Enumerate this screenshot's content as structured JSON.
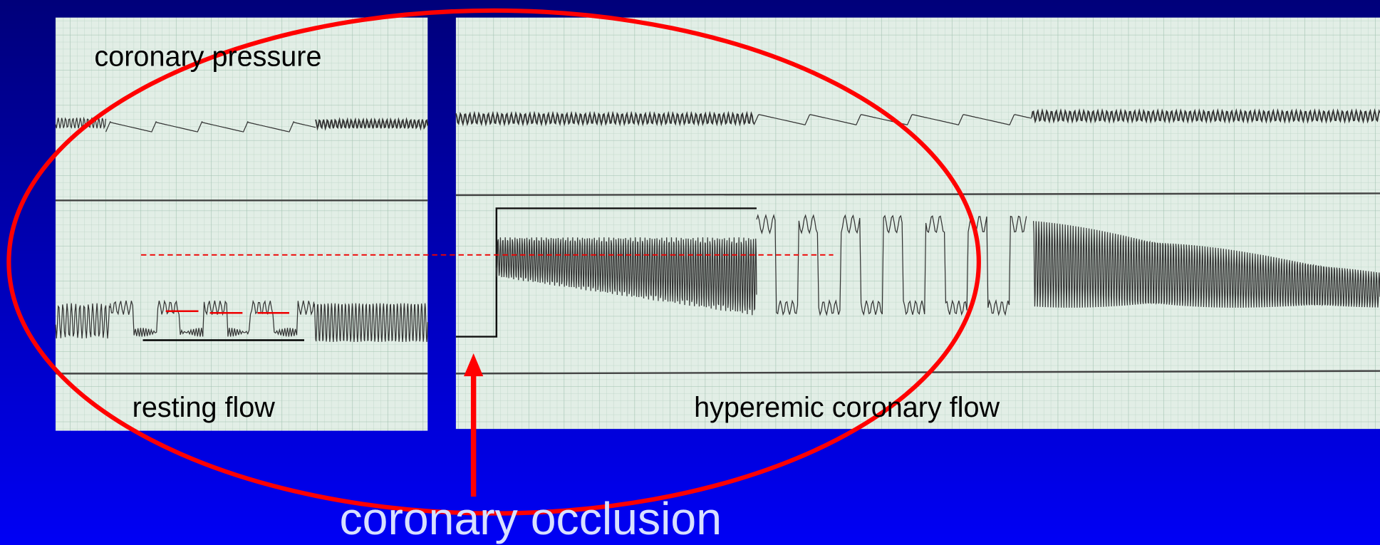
{
  "labels": {
    "pressure": "coronary pressure",
    "resting": "resting flow",
    "hyperemic": "hyperemic coronary flow",
    "occlusion": "coronary occlusion"
  }
}
